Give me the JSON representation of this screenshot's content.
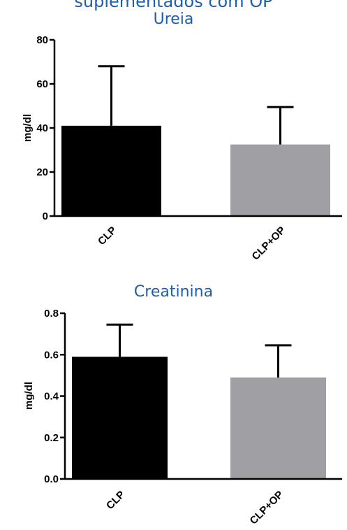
{
  "header": {
    "cropped_title": "suplementados com OP"
  },
  "chart_data": [
    {
      "type": "bar",
      "title": "Ureia",
      "ylabel": "mg/dl",
      "xlabel": "",
      "categories": [
        "CLP",
        "CLP+OP"
      ],
      "values": [
        41,
        32.5
      ],
      "errors": [
        27,
        17
      ],
      "ylim": [
        0,
        80
      ],
      "yticks": [
        "0",
        "20",
        "40",
        "60",
        "80"
      ],
      "ytick_values": [
        0,
        20,
        40,
        60,
        80
      ],
      "colors": [
        "#000000",
        "#a0a0a4"
      ],
      "grid": false,
      "legend": "none"
    },
    {
      "type": "bar",
      "title": "Creatinina",
      "ylabel": "mg/dl",
      "xlabel": "",
      "categories": [
        "CLP",
        "CLP+OP"
      ],
      "values": [
        0.59,
        0.49
      ],
      "errors": [
        0.155,
        0.155
      ],
      "ylim": [
        0,
        0.8
      ],
      "yticks": [
        "0.0",
        "0.2",
        "0.4",
        "0.6",
        "0.8"
      ],
      "ytick_values": [
        0,
        0.2,
        0.4,
        0.6,
        0.8
      ],
      "colors": [
        "#000000",
        "#a0a0a4"
      ],
      "grid": false,
      "legend": "none"
    }
  ]
}
